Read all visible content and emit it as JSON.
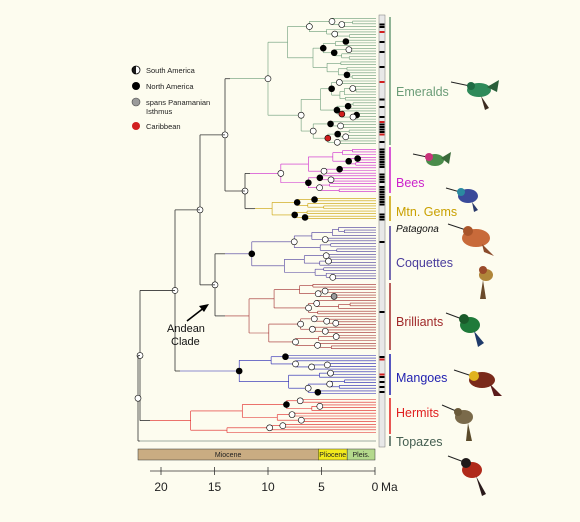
{
  "legend": [
    {
      "label": "South America",
      "fill": "#ffffff",
      "half": true
    },
    {
      "label": "North America",
      "fill": "#000000"
    },
    {
      "label": "spans Panamanian\nIsthmus",
      "fill": "#9a9a9a"
    },
    {
      "label": "Caribbean",
      "fill": "#d21f1f"
    }
  ],
  "clades": [
    {
      "name": "Emeralds",
      "color": "#6b9c78"
    },
    {
      "name": "Bees",
      "color": "#cc22cc"
    },
    {
      "name": "Mtn. Gems",
      "color": "#c9a000"
    },
    {
      "name": "Coquettes",
      "color": "#4a3c9c"
    },
    {
      "name": "Brilliants",
      "color": "#a02a2a"
    },
    {
      "name": "Mangoes",
      "color": "#1f1fb0"
    },
    {
      "name": "Hermits",
      "color": "#e01f1f"
    },
    {
      "name": "Topazes",
      "color": "#455f52"
    }
  ],
  "genus_label": "Patagona",
  "annotation": "Andean\nClade",
  "axis": {
    "ticks": [
      20,
      15,
      10,
      5,
      0
    ],
    "unit": "Ma",
    "epochs": [
      {
        "name": "Miocene",
        "from": 23,
        "to": 5.3,
        "color": "#c9ac82"
      },
      {
        "name": "Pliocene",
        "from": 5.3,
        "to": 2.6,
        "color": "#f2ea1c"
      },
      {
        "name": "Pleis.",
        "from": 2.6,
        "to": 0,
        "color": "#b4d98c"
      }
    ]
  },
  "icons": [
    "hummingbird-emerald-icon",
    "hummingbird-bee-icon",
    "hummingbird-mtngem-icon",
    "hummingbird-patagona-icon",
    "hummingbird-coquette-icon",
    "hummingbird-brilliant-icon",
    "hummingbird-mango-icon",
    "hummingbird-hermit-icon",
    "hummingbird-topaz-icon"
  ]
}
